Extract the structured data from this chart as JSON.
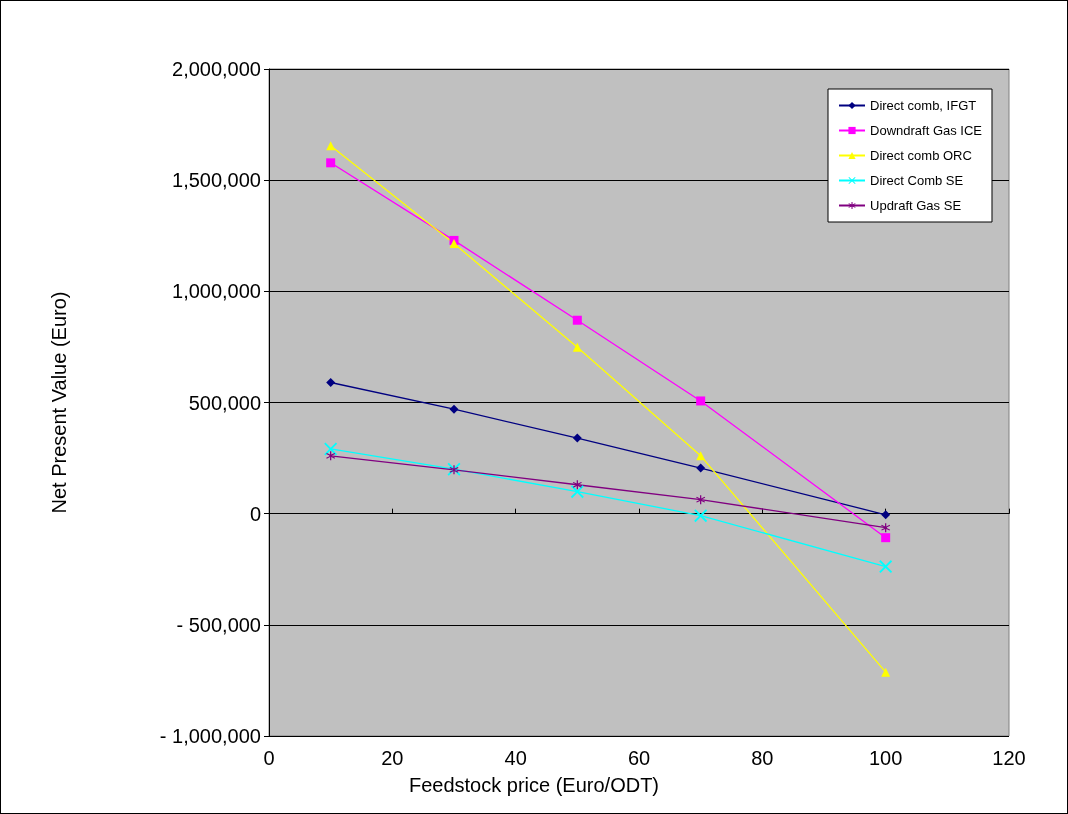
{
  "chart_data": {
    "type": "line",
    "xlabel": "Feedstock price (Euro/ODT)",
    "ylabel": "Net Present Value (Euro)",
    "x": [
      10,
      30,
      50,
      70,
      100
    ],
    "series": [
      {
        "name": "Direct comb, IFGT",
        "color": "#000080",
        "marker": "diamond",
        "values": [
          590000,
          470000,
          340000,
          205000,
          -5000
        ]
      },
      {
        "name": "Downdraft Gas ICE",
        "color": "#ff00ff",
        "marker": "square",
        "values": [
          1578000,
          1229000,
          870000,
          507000,
          -108000
        ]
      },
      {
        "name": "Direct comb ORC",
        "color": "#ffff00",
        "marker": "triangle",
        "values": [
          1655000,
          1215000,
          749000,
          260000,
          -713000
        ]
      },
      {
        "name": "Direct Comb SE",
        "color": "#00ffff",
        "marker": "cross",
        "values": [
          291000,
          200000,
          99000,
          -9000,
          -238000
        ]
      },
      {
        "name": "Updraft Gas SE",
        "color": "#800080",
        "marker": "star",
        "values": [
          260000,
          197000,
          130000,
          63000,
          -63000
        ]
      }
    ],
    "xlim": [
      0,
      120
    ],
    "xticks": [
      0,
      20,
      40,
      60,
      80,
      100,
      120
    ],
    "ylim": [
      -1000000,
      2000000
    ],
    "yticks": [
      {
        "value": -1000000,
        "label": "- 1,000,000"
      },
      {
        "value": -500000,
        "label": "- 500,000"
      },
      {
        "value": 0,
        "label": "0"
      },
      {
        "value": 500000,
        "label": "500,000"
      },
      {
        "value": 1000000,
        "label": "1,000,000"
      },
      {
        "value": 1500000,
        "label": "1,500,000"
      },
      {
        "value": 2000000,
        "label": "2,000,000"
      }
    ],
    "grid": "y",
    "legend": "top right",
    "line_style": "solid"
  }
}
